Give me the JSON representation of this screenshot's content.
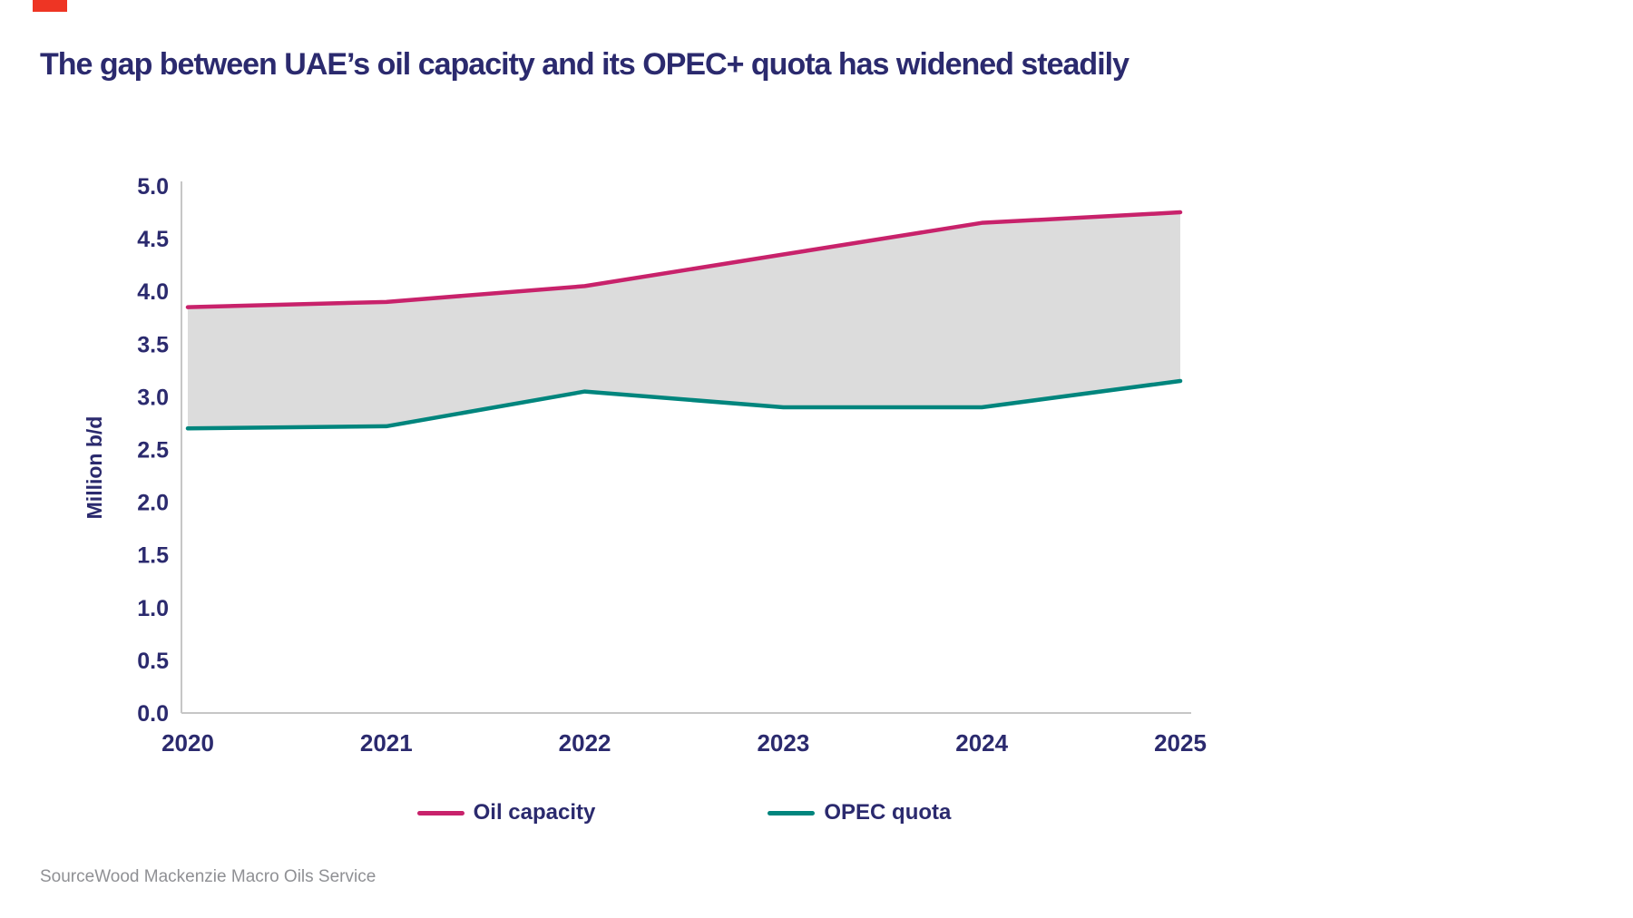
{
  "page": {
    "title": "The gap between UAE’s oil capacity and its OPEC+ quota has widened steadily",
    "source": "SourceWood Mackenzie Macro Oils Service"
  },
  "colors": {
    "title_navy": "#2b2a6e",
    "axis_line": "#c6c6c6",
    "tick_label": "#2b2a6e",
    "brand_red": "#ee3524",
    "gap_fill": "#dcdcdc",
    "source_gray": "#8f9094"
  },
  "chart_data": {
    "type": "line",
    "x": [
      2020,
      2021,
      2022,
      2023,
      2024,
      2025
    ],
    "series": [
      {
        "name": "Oil capacity",
        "color": "#c8226b",
        "values": [
          3.85,
          3.9,
          4.05,
          4.35,
          4.65,
          4.75
        ]
      },
      {
        "name": "OPEC quota",
        "color": "#00857d",
        "values": [
          2.7,
          2.72,
          3.05,
          2.9,
          2.9,
          3.15
        ]
      }
    ],
    "ylabel": "Million b/d",
    "xlabel": "",
    "ylim": [
      0,
      5
    ],
    "ytick_step": 0.5,
    "grid": false,
    "fill_between": true,
    "legend_position": "bottom"
  }
}
